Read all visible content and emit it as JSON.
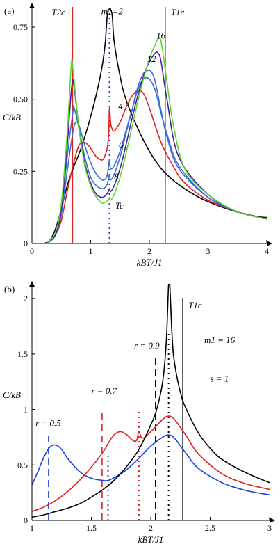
{
  "chart_data": [
    {
      "type": "line",
      "panel_label": "(a)",
      "xlabel": "kBT/J1",
      "ylabel": "C/kB",
      "xlim": [
        0,
        4
      ],
      "ylim": [
        0,
        0.82
      ],
      "x_ticks": [
        0,
        1,
        2,
        3,
        4
      ],
      "x_tick_labels": [
        "0",
        "1",
        "2",
        "3",
        "4"
      ],
      "y_ticks": [
        0,
        0.25,
        0.5,
        0.75
      ],
      "y_tick_labels": [
        "0",
        "0.25",
        "0.50",
        "0.75"
      ],
      "grid": false,
      "vertical_markers": [
        {
          "label": "T2c",
          "x": 0.69,
          "color": "#e02020",
          "style": "solid"
        },
        {
          "label": "T1c",
          "x": 2.27,
          "color": "#e02020",
          "style": "solid"
        },
        {
          "label": "Tc",
          "x": 1.32,
          "color": "#1a3fe0",
          "style": "dotted"
        }
      ],
      "annotations": [
        {
          "text": "m1=2",
          "x": 1.18,
          "y": 0.795
        },
        {
          "text": "16",
          "x": 2.12,
          "y": 0.71
        },
        {
          "text": "12",
          "x": 1.96,
          "y": 0.63
        },
        {
          "text": "4",
          "x": 1.47,
          "y": 0.465
        },
        {
          "text": "6",
          "x": 1.48,
          "y": 0.33
        },
        {
          "text": "8",
          "x": 1.4,
          "y": 0.222
        },
        {
          "text": "Tc",
          "x": 1.42,
          "y": 0.12
        }
      ],
      "series": [
        {
          "m1": 2,
          "color": "#000000",
          "x": [
            0.2,
            0.3,
            0.4,
            0.5,
            0.6,
            0.7,
            0.8,
            0.9,
            1.0,
            1.1,
            1.2,
            1.25,
            1.29,
            1.36,
            1.4,
            1.5,
            1.6,
            1.8,
            2.0,
            2.2,
            2.4,
            2.6,
            2.8,
            3.0,
            3.4,
            3.8,
            4.0
          ],
          "y": [
            0.0,
            0.01,
            0.05,
            0.12,
            0.2,
            0.26,
            0.31,
            0.37,
            0.44,
            0.52,
            0.62,
            0.7,
            0.8,
            0.8,
            0.7,
            0.58,
            0.5,
            0.4,
            0.32,
            0.26,
            0.22,
            0.19,
            0.165,
            0.145,
            0.115,
            0.095,
            0.09
          ]
        },
        {
          "m1": 4,
          "color": "#e02020",
          "x": [
            0.25,
            0.4,
            0.5,
            0.6,
            0.7,
            0.8,
            0.9,
            1.0,
            1.1,
            1.2,
            1.27,
            1.3,
            1.31,
            1.32,
            1.34,
            1.36,
            1.4,
            1.5,
            1.6,
            1.7,
            1.8,
            1.9,
            2.0,
            2.2,
            2.4,
            2.6,
            3.0,
            3.5,
            4.0
          ],
          "y": [
            0.0,
            0.03,
            0.08,
            0.18,
            0.27,
            0.34,
            0.35,
            0.33,
            0.3,
            0.29,
            0.32,
            0.36,
            0.4,
            0.47,
            0.42,
            0.4,
            0.39,
            0.42,
            0.47,
            0.51,
            0.53,
            0.52,
            0.47,
            0.35,
            0.27,
            0.21,
            0.15,
            0.11,
            0.085
          ]
        },
        {
          "m1": 6,
          "color": "#3b6cd8",
          "x": [
            0.25,
            0.4,
            0.5,
            0.6,
            0.7,
            0.75,
            0.8,
            0.9,
            1.0,
            1.1,
            1.2,
            1.27,
            1.3,
            1.32,
            1.34,
            1.4,
            1.5,
            1.6,
            1.7,
            1.8,
            1.9,
            2.0,
            2.1,
            2.2,
            2.3,
            2.5,
            3.0,
            3.5,
            4.0
          ],
          "y": [
            0.0,
            0.03,
            0.1,
            0.25,
            0.39,
            0.42,
            0.41,
            0.34,
            0.28,
            0.24,
            0.22,
            0.23,
            0.26,
            0.29,
            0.26,
            0.27,
            0.32,
            0.39,
            0.46,
            0.53,
            0.57,
            0.57,
            0.53,
            0.45,
            0.38,
            0.27,
            0.16,
            0.11,
            0.085
          ]
        },
        {
          "m1": 8,
          "color": "#3b6cd8",
          "x": [
            0.25,
            0.4,
            0.5,
            0.6,
            0.7,
            0.72,
            0.8,
            0.9,
            1.0,
            1.1,
            1.2,
            1.27,
            1.3,
            1.32,
            1.34,
            1.4,
            1.5,
            1.6,
            1.7,
            1.8,
            1.9,
            2.0,
            2.05,
            2.1,
            2.2,
            2.3,
            2.5,
            3.0,
            3.5,
            4.0
          ],
          "y": [
            0.0,
            0.03,
            0.11,
            0.3,
            0.46,
            0.47,
            0.4,
            0.3,
            0.23,
            0.2,
            0.19,
            0.2,
            0.22,
            0.24,
            0.22,
            0.24,
            0.3,
            0.38,
            0.46,
            0.54,
            0.59,
            0.6,
            0.59,
            0.56,
            0.46,
            0.37,
            0.26,
            0.16,
            0.11,
            0.085
          ]
        },
        {
          "m1": 12,
          "color": "#4a1f9c",
          "x": [
            0.25,
            0.4,
            0.5,
            0.6,
            0.68,
            0.72,
            0.8,
            0.9,
            1.0,
            1.1,
            1.2,
            1.27,
            1.3,
            1.32,
            1.34,
            1.4,
            1.5,
            1.6,
            1.7,
            1.8,
            1.9,
            2.0,
            2.1,
            2.15,
            2.2,
            2.3,
            2.5,
            3.0,
            3.5,
            4.0
          ],
          "y": [
            0.0,
            0.03,
            0.12,
            0.34,
            0.55,
            0.54,
            0.4,
            0.28,
            0.21,
            0.17,
            0.16,
            0.17,
            0.18,
            0.19,
            0.18,
            0.2,
            0.26,
            0.34,
            0.43,
            0.51,
            0.58,
            0.63,
            0.66,
            0.66,
            0.63,
            0.5,
            0.3,
            0.17,
            0.11,
            0.085
          ]
        },
        {
          "m1": 16,
          "color": "#59d62c",
          "x": [
            0.25,
            0.4,
            0.5,
            0.6,
            0.67,
            0.7,
            0.8,
            0.9,
            1.0,
            1.1,
            1.2,
            1.3,
            1.32,
            1.34,
            1.4,
            1.5,
            1.6,
            1.7,
            1.8,
            1.9,
            2.0,
            2.1,
            2.15,
            2.2,
            2.3,
            2.4,
            2.6,
            3.0,
            3.5,
            4.0
          ],
          "y": [
            0.0,
            0.04,
            0.14,
            0.38,
            0.62,
            0.6,
            0.4,
            0.27,
            0.2,
            0.16,
            0.14,
            0.15,
            0.16,
            0.15,
            0.17,
            0.23,
            0.31,
            0.4,
            0.49,
            0.57,
            0.64,
            0.69,
            0.71,
            0.7,
            0.56,
            0.42,
            0.26,
            0.17,
            0.11,
            0.085
          ]
        }
      ]
    },
    {
      "type": "line",
      "panel_label": "(b)",
      "xlabel": "kBT/J1",
      "ylabel": "C/kB",
      "xlim": [
        1,
        3
      ],
      "ylim": [
        0,
        2.12
      ],
      "x_ticks": [
        1,
        1.5,
        2,
        2.5,
        3
      ],
      "x_tick_labels": [
        "1",
        "1.5",
        "2",
        "2.5",
        "3"
      ],
      "y_ticks": [
        0,
        0.5,
        1,
        1.5,
        2
      ],
      "y_tick_labels": [
        "0",
        "0.5",
        "1",
        "1.5",
        "2"
      ],
      "grid": false,
      "vertical_markers": [
        {
          "label": "r = 0.5",
          "x": 1.14,
          "color": "#1a3fe0",
          "style": "dashed",
          "top": 0.78
        },
        {
          "label": "",
          "x": 1.64,
          "color": "#1a3fe0",
          "style": "dotted",
          "top": 0.58
        },
        {
          "label": "r = 0.7",
          "x": 1.59,
          "color": "#e02020",
          "style": "dashed",
          "top": 1.0
        },
        {
          "label": "",
          "x": 1.9,
          "color": "#e02020",
          "style": "dotted",
          "top": 1.0
        },
        {
          "label": "r = 0.9",
          "x": 2.04,
          "color": "#000000",
          "style": "dashed",
          "top": 1.5
        },
        {
          "label": "",
          "x": 2.15,
          "color": "#000000",
          "style": "dotted",
          "top": 1.7
        },
        {
          "label": "T1c",
          "x": 2.27,
          "color": "#000000",
          "style": "solid",
          "top": 2.0
        }
      ],
      "annotations": [
        {
          "text": "r = 0.5",
          "x": 1.03,
          "y": 0.85
        },
        {
          "text": "r = 0.7",
          "x": 1.5,
          "y": 1.14
        },
        {
          "text": "r = 0.9",
          "x": 1.86,
          "y": 1.55
        },
        {
          "text": "m1 = 16",
          "x": 2.45,
          "y": 1.6
        },
        {
          "text": "s = 1",
          "x": 2.5,
          "y": 1.25
        }
      ],
      "series": [
        {
          "name": "r = 0.5",
          "color": "#1a3fe0",
          "x": [
            1.0,
            1.05,
            1.1,
            1.15,
            1.2,
            1.25,
            1.3,
            1.4,
            1.5,
            1.6,
            1.64,
            1.7,
            1.8,
            1.9,
            2.0,
            2.1,
            2.15,
            2.2,
            2.3,
            2.4,
            2.6,
            2.8,
            3.0
          ],
          "y": [
            0.32,
            0.44,
            0.57,
            0.66,
            0.68,
            0.64,
            0.56,
            0.44,
            0.38,
            0.36,
            0.36,
            0.39,
            0.46,
            0.56,
            0.67,
            0.75,
            0.77,
            0.74,
            0.6,
            0.47,
            0.34,
            0.27,
            0.23
          ]
        },
        {
          "name": "r = 0.7",
          "color": "#e02020",
          "x": [
            1.0,
            1.1,
            1.2,
            1.3,
            1.4,
            1.5,
            1.6,
            1.65,
            1.7,
            1.75,
            1.8,
            1.85,
            1.88,
            1.9,
            1.93,
            2.0,
            2.1,
            2.15,
            2.2,
            2.3,
            2.4,
            2.6,
            2.8,
            3.0
          ],
          "y": [
            0.08,
            0.12,
            0.18,
            0.26,
            0.36,
            0.48,
            0.62,
            0.71,
            0.78,
            0.8,
            0.77,
            0.72,
            0.72,
            0.8,
            0.74,
            0.8,
            0.91,
            0.94,
            0.91,
            0.76,
            0.6,
            0.42,
            0.33,
            0.28
          ]
        },
        {
          "name": "r = 0.9",
          "color": "#000000",
          "x": [
            1.0,
            1.1,
            1.2,
            1.3,
            1.4,
            1.5,
            1.6,
            1.7,
            1.8,
            1.9,
            2.0,
            2.05,
            2.1,
            2.13,
            2.15,
            2.16,
            2.18,
            2.2,
            2.25,
            2.3,
            2.4,
            2.5,
            2.6,
            2.8,
            3.0
          ],
          "y": [
            0.03,
            0.05,
            0.08,
            0.11,
            0.15,
            0.21,
            0.28,
            0.37,
            0.49,
            0.64,
            0.86,
            1.0,
            1.25,
            1.6,
            2.12,
            2.12,
            1.65,
            1.42,
            1.15,
            1.0,
            0.79,
            0.65,
            0.55,
            0.43,
            0.34
          ]
        }
      ]
    }
  ]
}
